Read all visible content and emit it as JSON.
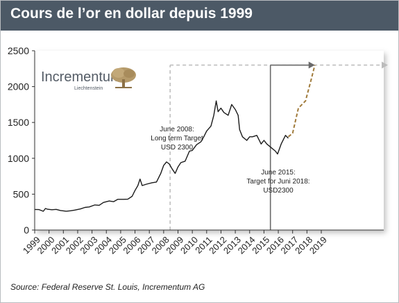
{
  "title": "Cours de l’or en dollar depuis 1999",
  "source": "Source: Federal Reserve St. Louis, Incrementum AG",
  "logo": {
    "name": "Incrementum",
    "sub": "Liechtenstein"
  },
  "colors": {
    "header": "#4c5966",
    "line": "#1a1a1a",
    "forecast": "#a07a3a",
    "target_dashed": "#bbbbbb",
    "target_solid": "#6a6a6a",
    "tree": "#b59a6a"
  },
  "chart_data": {
    "type": "line",
    "title": "Cours de l’or en dollar depuis 1999",
    "xlabel": "",
    "ylabel": "",
    "xlim": [
      1999,
      2019.3
    ],
    "ylim": [
      0,
      2500
    ],
    "yticks": [
      0,
      500,
      1000,
      1500,
      2000,
      2500
    ],
    "xticks": [
      "1999",
      "2000",
      "2001",
      "2002",
      "2003",
      "2004",
      "2005",
      "2006",
      "2007",
      "2008",
      "2009",
      "2010",
      "2011",
      "2012",
      "2013",
      "2014",
      "2015",
      "2016",
      "2017",
      "2018",
      "2019"
    ],
    "grid": false,
    "series": [
      {
        "name": "",
        "style": "solid",
        "x": [
          1999.0,
          1999.3,
          1999.6,
          1999.75,
          1999.9,
          2000.2,
          2000.5,
          2000.8,
          2001.2,
          2001.5,
          2001.8,
          2002.2,
          2002.5,
          2002.8,
          2003.2,
          2003.5,
          2003.8,
          2004.2,
          2004.5,
          2004.8,
          2005.2,
          2005.5,
          2005.8,
          2006.0,
          2006.2,
          2006.35,
          2006.5,
          2006.8,
          2007.2,
          2007.5,
          2007.8,
          2008.0,
          2008.2,
          2008.4,
          2008.6,
          2008.8,
          2009.0,
          2009.2,
          2009.5,
          2009.8,
          2010.0,
          2010.3,
          2010.6,
          2010.8,
          2011.0,
          2011.3,
          2011.5,
          2011.67,
          2011.8,
          2012.0,
          2012.2,
          2012.5,
          2012.75,
          2013.0,
          2013.2,
          2013.3,
          2013.5,
          2013.8,
          2014.0,
          2014.2,
          2014.5,
          2014.8,
          2015.0,
          2015.2,
          2015.5,
          2015.8,
          2015.95,
          2016.2,
          2016.5,
          2016.7
        ],
        "y": [
          287,
          285,
          262,
          300,
          290,
          283,
          288,
          272,
          263,
          268,
          278,
          295,
          315,
          322,
          350,
          345,
          385,
          405,
          395,
          428,
          428,
          430,
          470,
          550,
          620,
          710,
          620,
          640,
          660,
          670,
          790,
          900,
          950,
          920,
          850,
          790,
          880,
          940,
          960,
          1100,
          1110,
          1190,
          1230,
          1300,
          1380,
          1450,
          1600,
          1800,
          1650,
          1700,
          1640,
          1600,
          1750,
          1680,
          1600,
          1400,
          1300,
          1250,
          1300,
          1300,
          1320,
          1200,
          1250,
          1200,
          1150,
          1100,
          1060,
          1200,
          1320,
          1280
        ]
      },
      {
        "name": "",
        "style": "dashed",
        "x": [
          2016.7,
          2017.0,
          2017.4,
          2017.9,
          2018.3,
          2018.55
        ],
        "y": [
          1300,
          1350,
          1700,
          1800,
          2100,
          2300
        ]
      }
    ],
    "annotations": [
      {
        "text": [
          "June 2008:",
          "Long term Target",
          "USD 2300"
        ]
      },
      {
        "text": [
          "June 2015:",
          "Target for Juni 2018:",
          "USD2300"
        ]
      }
    ],
    "targets": [
      {
        "from_x": 2008.45,
        "to_x": 2019.3,
        "y": 2300,
        "style": "dashed"
      },
      {
        "from_x": 2015.45,
        "to_x": 2018.55,
        "y": 2300,
        "style": "solid"
      }
    ]
  }
}
